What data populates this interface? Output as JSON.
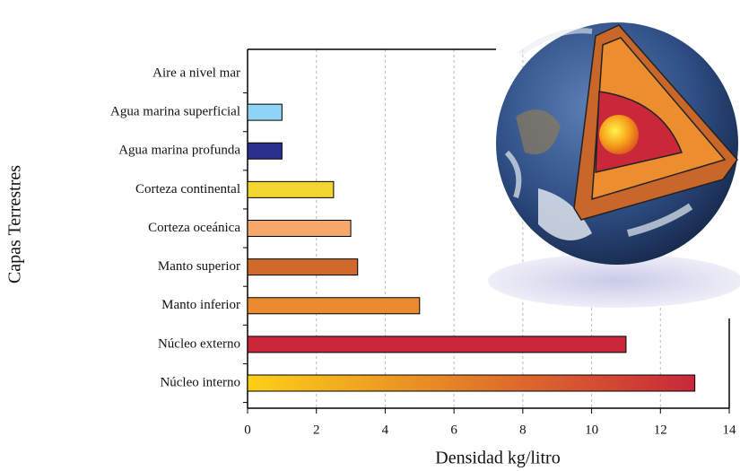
{
  "chart_data": {
    "type": "barh",
    "categories": [
      "Aire a nivel mar",
      "Agua marina superficial",
      "Agua marina profunda",
      "Corteza continental",
      "Corteza oceánica",
      "Manto superior",
      "Manto inferior",
      "Núcleo externo",
      "Núcleo interno"
    ],
    "values": [
      0,
      1,
      1,
      2.5,
      3,
      3.2,
      5,
      11,
      13
    ],
    "colors": [
      "#ffffff",
      "#8fd3f5",
      "#2b2f8e",
      "#f2d630",
      "#f5a86a",
      "#cf6a2a",
      "#eb8a2f",
      "#c8283a",
      [
        "#fdd017",
        "#c8283a"
      ]
    ],
    "xlabel": "Densidad kg/litro",
    "ylabel": "Capas Terrestres",
    "xlim": [
      0,
      14
    ],
    "xticks": [
      0,
      2,
      4,
      6,
      8,
      10,
      12,
      14
    ],
    "grid": true
  }
}
